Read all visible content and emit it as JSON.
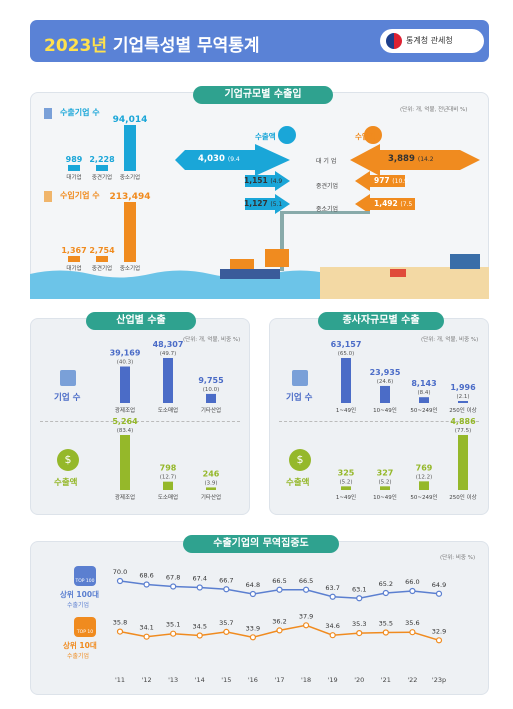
{
  "header": {
    "year": "2023년",
    "title": "기업특성별 무역통계",
    "agency": "통계청 관세청"
  },
  "size_section": {
    "title": "기업규모별 수출입",
    "unit": "(단위: 개, 억불, 전년대비 %)",
    "exporters_label": "수출기업 수",
    "importers_label": "수입기업 수",
    "export_amount_label": "수출액",
    "import_amount_label": "수입액",
    "categories_short": [
      "대기업",
      "중견기업",
      "중소기업"
    ],
    "categories_mid": [
      "대 기 업",
      "중견기업",
      "중소기업"
    ],
    "exporter_counts": [
      "989",
      "2,228",
      "94,014"
    ],
    "importer_counts": [
      "1,367",
      "2,754",
      "213,494"
    ],
    "export_amounts": [
      "4,030",
      "1,151",
      "1,127"
    ],
    "export_changes": [
      "(9.4",
      "(4.9",
      "(5.1"
    ],
    "import_amounts": [
      "3,889",
      "977",
      "1,492"
    ],
    "import_changes": [
      "(14.2",
      "(10.9",
      "(7.5"
    ]
  },
  "industry_section": {
    "title": "산업별 수출",
    "unit": "(단위: 개, 억불, 비중 %)",
    "firms_label": "기업 수",
    "exports_label": "수출액",
    "coin_label": "$",
    "categories": [
      "광제조업",
      "도소매업",
      "기타산업"
    ],
    "firm_values": [
      "39,169",
      "48,307",
      "9,755"
    ],
    "firm_shares": [
      "(40.3)",
      "(49.7)",
      "(10.0)"
    ],
    "export_values": [
      "5,264",
      "798",
      "246"
    ],
    "export_shares": [
      "(83.4)",
      "(12.7)",
      "(3.9)"
    ]
  },
  "employee_section": {
    "title": "종사자규모별 수출",
    "unit": "(단위: 개, 억불, 비중 %)",
    "firms_label": "기업 수",
    "exports_label": "수출액",
    "coin_label": "$",
    "categories": [
      "1~49인",
      "10~49인",
      "50~249인",
      "250인 이상"
    ],
    "firm_values": [
      "63,157",
      "23,935",
      "8,143",
      "1,996"
    ],
    "firm_shares": [
      "(65.0)",
      "(24.6)",
      "(8.4)",
      "(2.1)"
    ],
    "export_values": [
      "325",
      "327",
      "769",
      "4,886"
    ],
    "export_shares": [
      "(5.2)",
      "(5.2)",
      "(12.2)",
      "(77.5)"
    ]
  },
  "concentration_section": {
    "title": "수출기업의 무역집중도",
    "unit": "(단위: 비중 %)",
    "top100_label": "상위 100대",
    "top100_badge": "TOP 100",
    "top10_label": "상위 10대",
    "top10_badge": "TOP 10",
    "sublabel": "수출기업"
  },
  "chart_data": [
    {
      "type": "bar",
      "title": "",
      "categories": [
        "대기업",
        "중견기업",
        "중소기업"
      ],
      "series": [
        {
          "name": "수출기업 수",
          "values": [
            989,
            2228,
            94014
          ]
        },
        {
          "name": "수입기업 수",
          "values": [
            1367,
            2754,
            213494
          ]
        }
      ]
    },
    {
      "type": "bar",
      "title": "",
      "categories": [
        "대기업",
        "중견기업",
        "중소기업"
      ],
      "series": [
        {
          "name": "수출액",
          "values": [
            4030,
            1151,
            1127
          ],
          "change": [
            -9.4,
            -4.9,
            -5.1
          ]
        },
        {
          "name": "수입액",
          "values": [
            3889,
            977,
            1492
          ],
          "change": [
            -14.2,
            -10.9,
            -7.5
          ]
        }
      ]
    },
    {
      "type": "bar",
      "title": "",
      "categories": [
        "광제조업",
        "도소매업",
        "기타산업"
      ],
      "series": [
        {
          "name": "기업 수",
          "values": [
            39169,
            48307,
            9755
          ],
          "share": [
            40.3,
            49.7,
            10.0
          ]
        },
        {
          "name": "수출액",
          "values": [
            5264,
            798,
            246
          ],
          "share": [
            83.4,
            12.7,
            3.9
          ]
        }
      ]
    },
    {
      "type": "bar",
      "title": "",
      "categories": [
        "1~49인",
        "10~49인",
        "50~249인",
        "250인 이상"
      ],
      "series": [
        {
          "name": "기업 수",
          "values": [
            63157,
            23935,
            8143,
            1996
          ],
          "share": [
            65.0,
            24.6,
            8.4,
            2.1
          ]
        },
        {
          "name": "수출액",
          "values": [
            325,
            327,
            769,
            4886
          ],
          "share": [
            5.2,
            5.2,
            12.2,
            77.5
          ]
        }
      ]
    },
    {
      "type": "line",
      "title": "",
      "x": [
        "'11",
        "'12",
        "'13",
        "'14",
        "'15",
        "'16",
        "'17",
        "'18",
        "'19",
        "'20",
        "'21",
        "'22",
        "'23p"
      ],
      "series": [
        {
          "name": "상위 100대",
          "values": [
            70.0,
            68.6,
            67.8,
            67.4,
            66.7,
            64.8,
            66.5,
            66.5,
            63.7,
            63.1,
            65.2,
            66.0,
            64.9
          ],
          "color": "#5b7fd0"
        },
        {
          "name": "상위 10대",
          "values": [
            35.8,
            34.1,
            35.1,
            34.5,
            35.7,
            33.9,
            36.2,
            37.9,
            34.6,
            35.3,
            35.5,
            35.6,
            32.9
          ],
          "color": "#f08b1f"
        }
      ],
      "grid": false
    }
  ],
  "colors": {
    "blue": "#5a82d6",
    "teal": "#2fa28f",
    "cyan": "#1aa6d8",
    "orange": "#f08b1f",
    "green": "#95b82a",
    "navy": "#4b6cc7"
  }
}
